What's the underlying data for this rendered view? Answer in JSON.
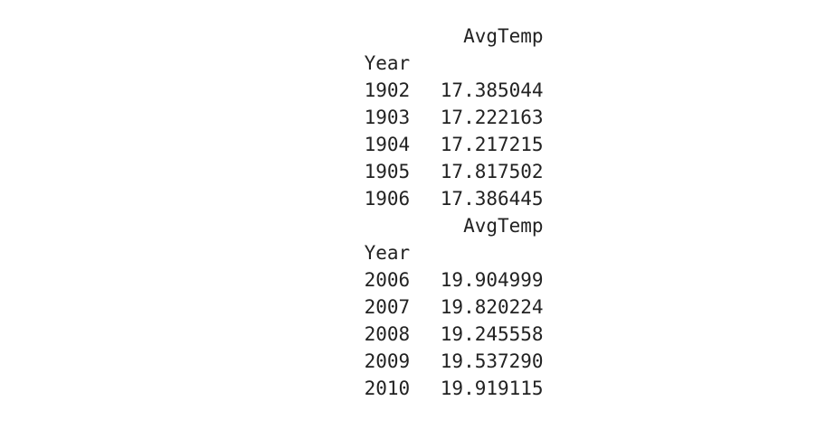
{
  "tables": [
    {
      "column_header": "AvgTemp",
      "index_label": "Year",
      "rows": [
        {
          "year": "1902",
          "value": "17.385044"
        },
        {
          "year": "1903",
          "value": "17.222163"
        },
        {
          "year": "1904",
          "value": "17.217215"
        },
        {
          "year": "1905",
          "value": "17.817502"
        },
        {
          "year": "1906",
          "value": "17.386445"
        }
      ]
    },
    {
      "column_header": "AvgTemp",
      "index_label": "Year",
      "rows": [
        {
          "year": "2006",
          "value": "19.904999"
        },
        {
          "year": "2007",
          "value": "19.820224"
        },
        {
          "year": "2008",
          "value": "19.245558"
        },
        {
          "year": "2009",
          "value": "19.537290"
        },
        {
          "year": "2010",
          "value": "19.919115"
        }
      ]
    }
  ]
}
